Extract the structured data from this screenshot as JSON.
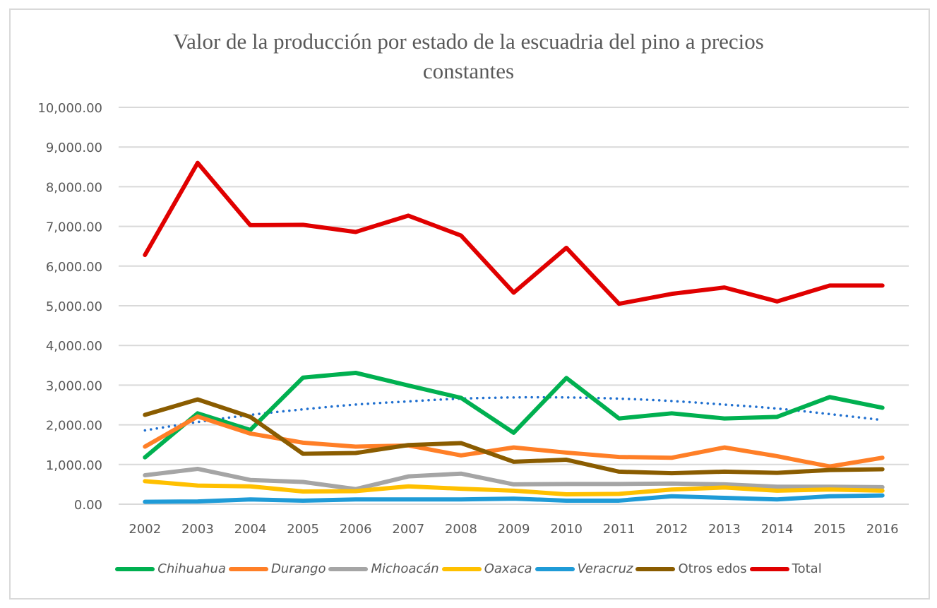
{
  "chart_data": {
    "type": "line",
    "title": "Valor de la producción por estado de la escuadria del pino a precios constantes",
    "title_lines": [
      "Valor de la producción por estado de la escuadria del pino a precios",
      "constantes"
    ],
    "xlabel": "",
    "ylabel": "",
    "ylim": [
      0,
      10000
    ],
    "y_ticks": [
      0,
      1000,
      2000,
      3000,
      4000,
      5000,
      6000,
      7000,
      8000,
      9000,
      10000
    ],
    "y_tick_labels": [
      "0.00",
      "1,000.00",
      "2,000.00",
      "3,000.00",
      "4,000.00",
      "5,000.00",
      "6,000.00",
      "7,000.00",
      "8,000.00",
      "9,000.00",
      "10,000.00"
    ],
    "grid": true,
    "legend_position": "bottom",
    "categories": [
      "2002",
      "2003",
      "2004",
      "2005",
      "2006",
      "2007",
      "2008",
      "2009",
      "2010",
      "2011",
      "2012",
      "2013",
      "2014",
      "2015",
      "2016"
    ],
    "series": [
      {
        "name": "Chihuahua",
        "color": "#00b050",
        "italic": true,
        "values": [
          1180,
          2290,
          1870,
          3190,
          3310,
          2990,
          2680,
          1800,
          3180,
          2160,
          2290,
          2160,
          2200,
          2700,
          2430
        ]
      },
      {
        "name": "Durango",
        "color": "#ff7f27",
        "italic": true,
        "values": [
          1450,
          2210,
          1780,
          1550,
          1450,
          1480,
          1230,
          1430,
          1300,
          1190,
          1170,
          1430,
          1210,
          950,
          1170
        ]
      },
      {
        "name": "Michoacán",
        "color": "#a5a5a5",
        "italic": true,
        "values": [
          730,
          890,
          610,
          560,
          380,
          700,
          770,
          500,
          510,
          510,
          520,
          500,
          440,
          440,
          430
        ]
      },
      {
        "name": "Oaxaca",
        "color": "#ffc000",
        "italic": true,
        "values": [
          580,
          470,
          450,
          320,
          330,
          450,
          390,
          340,
          250,
          260,
          370,
          420,
          340,
          370,
          340
        ]
      },
      {
        "name": "Veracruz",
        "color": "#1f9bd7",
        "italic": true,
        "values": [
          60,
          70,
          120,
          90,
          120,
          120,
          120,
          140,
          90,
          90,
          200,
          160,
          120,
          200,
          220
        ]
      },
      {
        "name": "Otros edos",
        "color": "#8a5c00",
        "italic": false,
        "values": [
          2250,
          2640,
          2200,
          1270,
          1290,
          1490,
          1540,
          1070,
          1120,
          820,
          780,
          820,
          790,
          860,
          880
        ]
      },
      {
        "name": "Total",
        "color": "#e00000",
        "italic": false,
        "values": [
          6280,
          8600,
          7030,
          7040,
          6860,
          7270,
          6770,
          5330,
          6460,
          5050,
          5300,
          5460,
          5110,
          5510,
          5510
        ]
      }
    ],
    "trendline": {
      "name": "Polynomial trend (Chihuahua)",
      "style": "dotted",
      "color": "#1f6fcf",
      "values": [
        1860,
        2070,
        2250,
        2390,
        2510,
        2590,
        2660,
        2690,
        2690,
        2660,
        2600,
        2510,
        2410,
        2270,
        2120
      ]
    }
  }
}
